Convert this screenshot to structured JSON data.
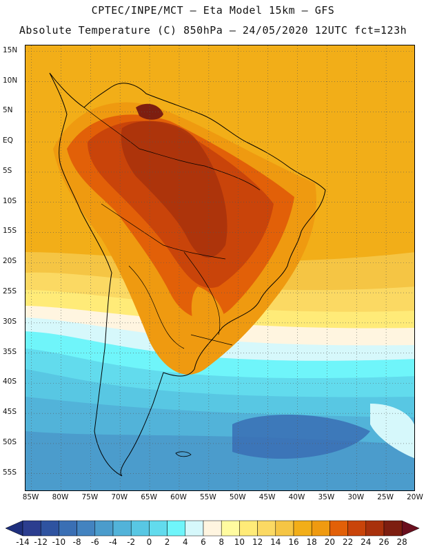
{
  "header": {
    "line1": "CPTEC/INPE/MCT –  Eta Model 15km – GFS",
    "line2": "Absolute Temperature (C) 850hPa – 24/05/2020 12UTC fct=123h"
  },
  "map": {
    "lat_labels": [
      "15N",
      "10N",
      "5N",
      "EQ",
      "5S",
      "10S",
      "15S",
      "20S",
      "25S",
      "30S",
      "35S",
      "40S",
      "45S",
      "50S",
      "55S"
    ],
    "lon_labels": [
      "85W",
      "80W",
      "75W",
      "70W",
      "65W",
      "60W",
      "55W",
      "50W",
      "45W",
      "40W",
      "35W",
      "30W",
      "25W",
      "20W"
    ],
    "lat_values": [
      15,
      10,
      5,
      0,
      -5,
      -10,
      -15,
      -20,
      -25,
      -30,
      -35,
      -40,
      -45,
      -50,
      -55
    ],
    "lon_values": [
      -85,
      -80,
      -75,
      -70,
      -65,
      -60,
      -55,
      -50,
      -45,
      -40,
      -35,
      -30,
      -25,
      -20
    ],
    "extent": {
      "lon_min": -86,
      "lon_max": -20,
      "lat_min": -58,
      "lat_max": 16
    }
  },
  "colorbar": {
    "labels": [
      "-14",
      "-12",
      "-10",
      "-8",
      "-6",
      "-4",
      "-2",
      "0",
      "2",
      "4",
      "6",
      "8",
      "10",
      "12",
      "14",
      "16",
      "18",
      "20",
      "22",
      "24",
      "26",
      "28"
    ],
    "colors": [
      "#2b3d8f",
      "#2f53a0",
      "#3a6fb4",
      "#4383c0",
      "#4b9ccc",
      "#52b3d9",
      "#58c7e3",
      "#62dbed",
      "#6ff5fa",
      "#d6f8fb",
      "#fff5e0",
      "#fffba0",
      "#ffeb78",
      "#fbd963",
      "#f5c544",
      "#f2ae18",
      "#ef9a10",
      "#e26008",
      "#c9440a",
      "#a8310c",
      "#7d1e10"
    ],
    "under_color": "#1e2f7d",
    "over_color": "#6a0f1e"
  }
}
